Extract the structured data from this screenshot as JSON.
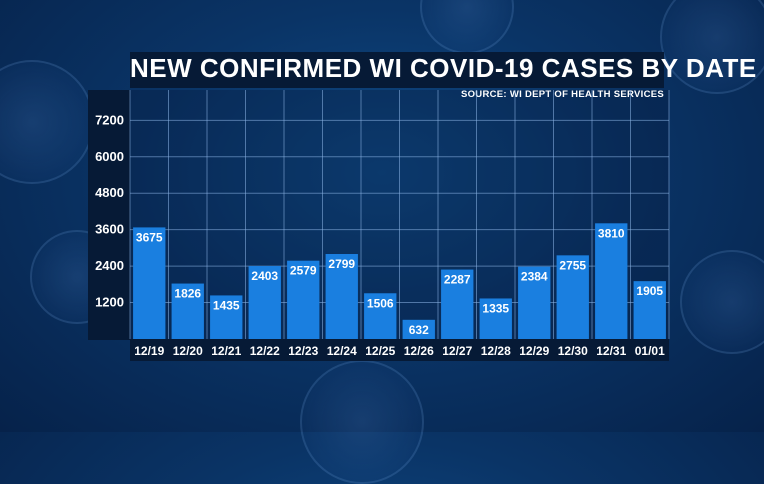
{
  "chart_data": {
    "type": "bar",
    "title": "NEW CONFIRMED WI COVID-19 CASES BY DATE",
    "subtitle": "SOURCE: WI DEPT OF HEALTH SERVICES",
    "xlabel": "",
    "ylabel": "",
    "categories": [
      "12/19",
      "12/20",
      "12/21",
      "12/22",
      "12/23",
      "12/24",
      "12/25",
      "12/26",
      "12/27",
      "12/28",
      "12/29",
      "12/30",
      "12/31",
      "01/01"
    ],
    "values": [
      3675,
      1826,
      1435,
      2403,
      2579,
      2799,
      1506,
      632,
      2287,
      1335,
      2384,
      2755,
      3810,
      1905
    ],
    "data_labels": [
      "3675",
      "1826",
      "1435",
      "2403",
      "2579",
      "2799",
      "1506",
      "632",
      "2287",
      "1335",
      "2384",
      "2755",
      "3810",
      "1905"
    ],
    "yticks": [
      1200,
      2400,
      3600,
      4800,
      6000,
      7200
    ],
    "ytick_labels": [
      "1200",
      "2400",
      "3600",
      "4800",
      "6000",
      "7200"
    ],
    "ylim": [
      0,
      8200
    ],
    "grid": true,
    "bar_color": "#1a7fe0",
    "label_color": "#ffffff"
  }
}
